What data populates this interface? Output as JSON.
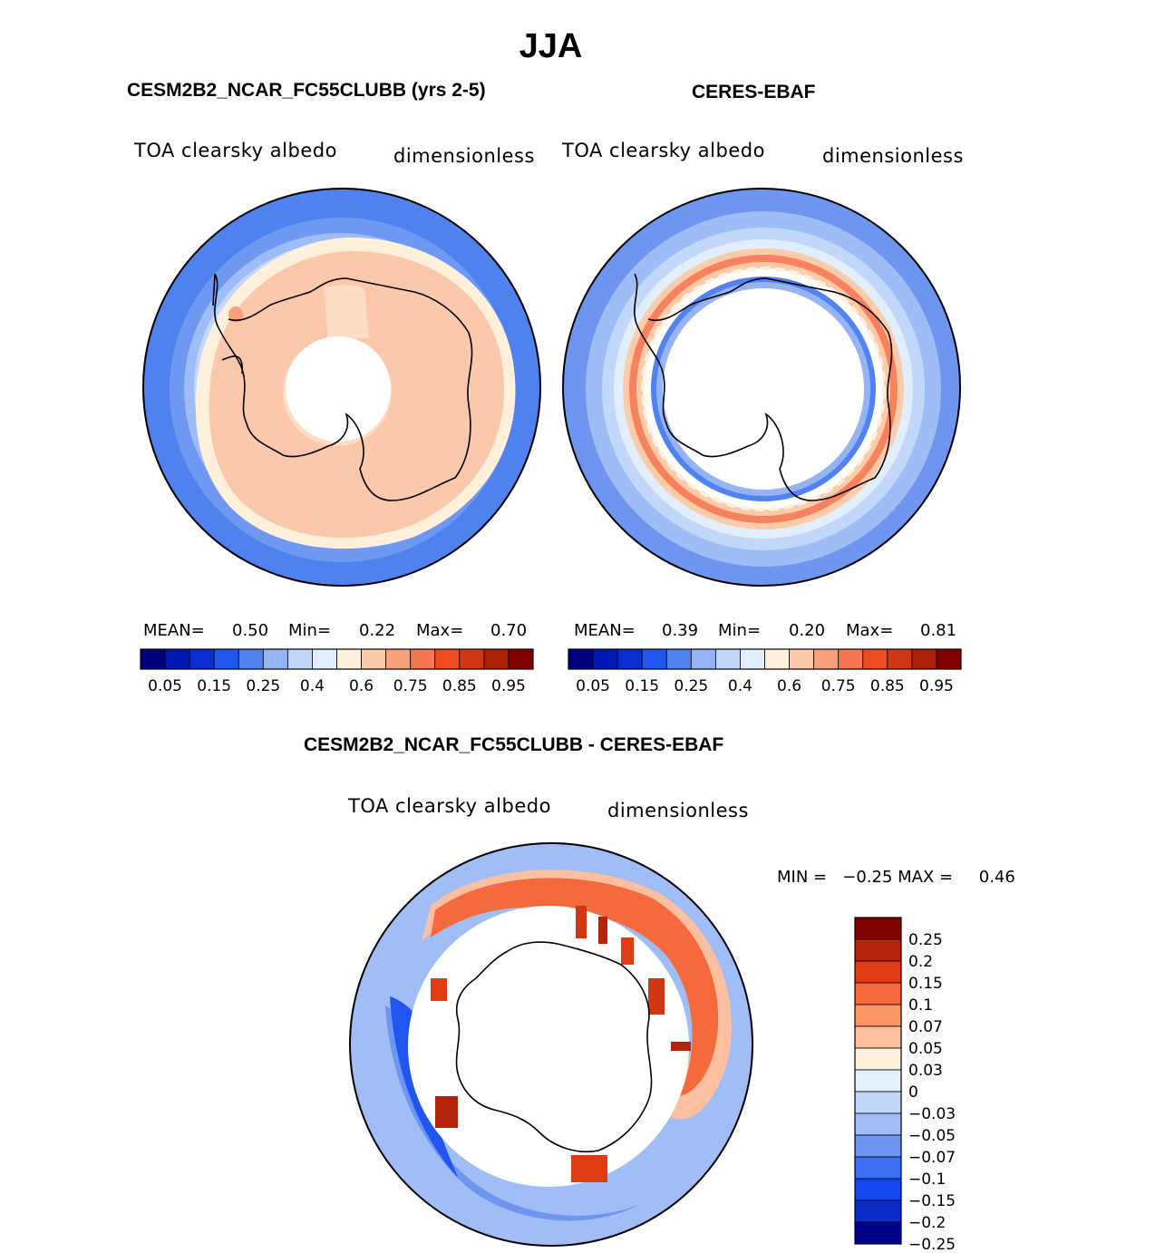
{
  "figure_title": "JJA",
  "panel_top_left": {
    "title": "CESM2B2_NCAR_FC55CLUBB (yrs 2-5)",
    "left_label": "TOA clearsky albedo",
    "right_label": "dimensionless",
    "mean_label": "MEAN=",
    "mean_value": "0.50",
    "min_label": "Min=",
    "min_value": "0.22",
    "max_label": "Max=",
    "max_value": "0.70"
  },
  "panel_top_right": {
    "title": "CERES-EBAF",
    "left_label": "TOA clearsky albedo",
    "right_label": "dimensionless",
    "mean_label": "MEAN=",
    "mean_value": "0.39",
    "min_label": "Min=",
    "min_value": "0.20",
    "max_label": "Max=",
    "max_value": "0.81"
  },
  "panel_bottom": {
    "title": "CESM2B2_NCAR_FC55CLUBB - CERES-EBAF",
    "left_label": "TOA clearsky albedo",
    "right_label": "dimensionless",
    "minmax_text": "MIN =   −0.25 MAX =     0.46"
  },
  "abs_colorbar": {
    "colors": [
      "#00007f",
      "#0018b4",
      "#0a2dd2",
      "#2155f0",
      "#5082f0",
      "#96b4f5",
      "#c3d7fa",
      "#e1eefc",
      "#fff0dc",
      "#fccbaa",
      "#faa07d",
      "#f67650",
      "#f04b1e",
      "#d23714",
      "#aa2008",
      "#800000"
    ],
    "tick_labels": [
      "0.05",
      "0.15",
      "0.25",
      "0.4",
      "0.6",
      "0.75",
      "0.85",
      "0.95"
    ]
  },
  "diff_colorbar": {
    "colors": [
      "#800000",
      "#b4230a",
      "#e03c14",
      "#f56a3c",
      "#fa9664",
      "#fcc0a0",
      "#fff0dc",
      "#e6f0fc",
      "#c3d7fa",
      "#a0bef5",
      "#6e96f0",
      "#3c6ef0",
      "#1446f0",
      "#0a2dc8",
      "#00008c"
    ],
    "tick_labels": [
      "0.25",
      "0.2",
      "0.15",
      "0.1",
      "0.07",
      "0.05",
      "0.03",
      "0",
      "−0.03",
      "−0.05",
      "−0.07",
      "−0.1",
      "−0.15",
      "−0.2",
      "−0.25"
    ]
  }
}
